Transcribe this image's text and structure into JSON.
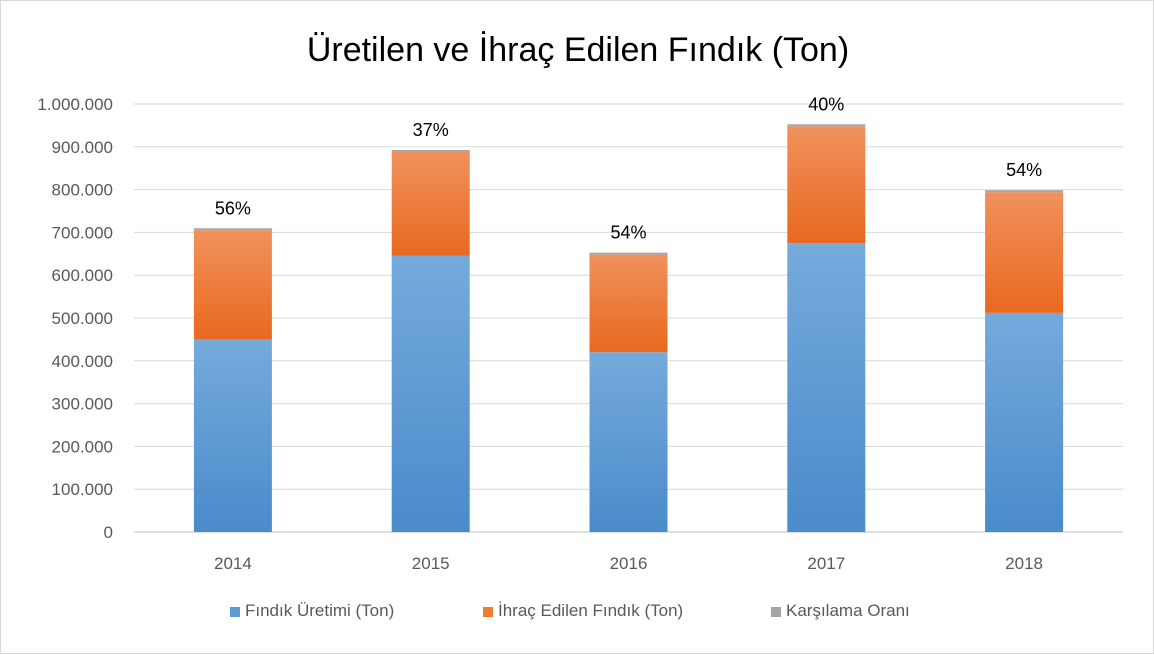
{
  "chart_data": {
    "type": "bar",
    "stacked": true,
    "title": "Üretilen ve İhraç Edilen Fındık (Ton)",
    "categories": [
      "2014",
      "2015",
      "2016",
      "2017",
      "2018"
    ],
    "series": [
      {
        "name": "Fındık Üretimi (Ton)",
        "values": [
          450000,
          646000,
          420000,
          675000,
          512000
        ],
        "color": "#5b9bd5"
      },
      {
        "name": "İhraç Edilen Fındık (Ton)",
        "values": [
          255000,
          242000,
          228000,
          273000,
          282000
        ],
        "color": "#ed7d31"
      },
      {
        "name": "Karşılama Oranı",
        "values": [
          0.56,
          0.37,
          0.54,
          0.4,
          0.54
        ],
        "color": "#a5a5a5"
      }
    ],
    "data_labels": [
      "56%",
      "37%",
      "54%",
      "40%",
      "54%"
    ],
    "y_ticks": [
      "0",
      "100.000",
      "200.000",
      "300.000",
      "400.000",
      "500.000",
      "600.000",
      "700.000",
      "800.000",
      "900.000",
      "1.000.000"
    ],
    "ylim": [
      0,
      1000000
    ],
    "grid": true,
    "legend_position": "bottom"
  }
}
